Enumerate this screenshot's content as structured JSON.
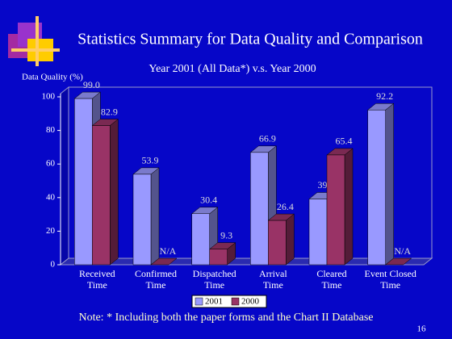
{
  "title": "Statistics Summary for Data Quality and Comparison",
  "note": "Note: * Including both the paper forms and the Chart II Database",
  "page_number": "16",
  "chart_data": {
    "type": "bar3d",
    "subtitle": "Year 2001 (All Data*) v.s. Year 2000",
    "y_label": "Data Quality (%)",
    "categories": [
      [
        "Received",
        "Time"
      ],
      [
        "Confirmed",
        "Time"
      ],
      [
        "Dispatched",
        "Time"
      ],
      [
        "Arrival",
        "Time"
      ],
      [
        "Cleared",
        "Time"
      ],
      [
        "Event Closed",
        "Time"
      ]
    ],
    "series": [
      {
        "name": "2001",
        "color": "#9999ff",
        "values": [
          99.0,
          53.9,
          30.4,
          66.9,
          39.2,
          92.2
        ],
        "value_labels": [
          "99.0",
          "53.9",
          "30.4",
          "66.9",
          "39.2",
          "92.2"
        ]
      },
      {
        "name": "2000",
        "color": "#993366",
        "values": [
          82.9,
          null,
          9.3,
          26.4,
          65.4,
          null
        ],
        "value_labels": [
          "82.9",
          "N/A",
          "9.3",
          "26.4",
          "65.4",
          "N/A"
        ]
      }
    ],
    "ylim": [
      0,
      100
    ],
    "yticks": [
      0,
      20,
      40,
      60,
      80,
      100
    ]
  }
}
